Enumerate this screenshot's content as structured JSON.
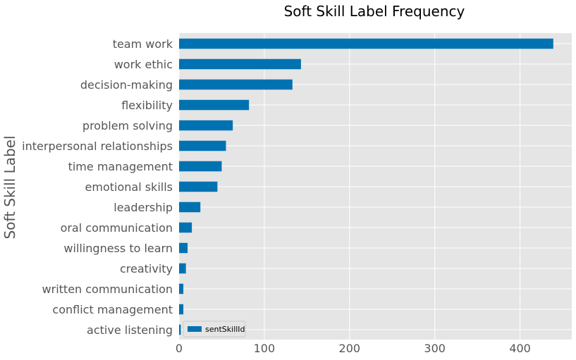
{
  "chart_data": {
    "type": "bar",
    "orientation": "horizontal",
    "title": "Soft Skill Label Frequency",
    "xlabel": "",
    "ylabel": "Soft Skill Label",
    "xlim": [
      0,
      462
    ],
    "xticks": [
      0,
      100,
      200,
      300,
      400
    ],
    "grid": true,
    "legend_position": "lower-left",
    "bar_color": "#0072B2",
    "background_color": "#E5E5E5",
    "categories": [
      "team work",
      "work ethic",
      "decision-making",
      "flexibility",
      "problem solving",
      "interpersonal relationships",
      "time management",
      "emotional skills",
      "leadership",
      "oral communication",
      "willingness to learn",
      "creativity",
      "written communication",
      "conflict management",
      "active listening"
    ],
    "series": [
      {
        "name": "sentSkillId",
        "values": [
          439,
          143,
          133,
          82,
          63,
          55,
          50,
          45,
          25,
          15,
          10,
          8,
          5,
          5,
          2
        ]
      }
    ]
  }
}
